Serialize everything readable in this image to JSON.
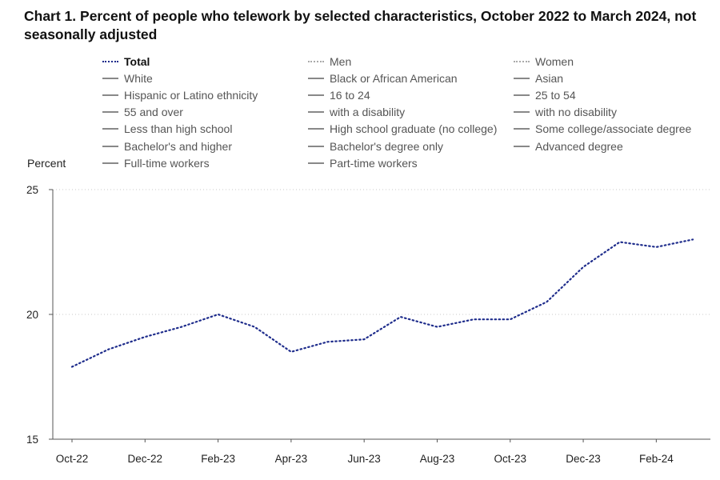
{
  "chart_data": {
    "type": "line",
    "title": "Chart 1. Percent of people who telework by selected characteristics, October 2022 to March 2024, not seasonally adjusted",
    "ylabel": "Percent",
    "xlabel": "",
    "ylim": [
      15,
      25
    ],
    "yticks": [
      "15",
      "20",
      "25"
    ],
    "x": [
      "Oct-22",
      "Nov-22",
      "Dec-22",
      "Jan-23",
      "Feb-23",
      "Mar-23",
      "Apr-23",
      "May-23",
      "Jun-23",
      "Jul-23",
      "Aug-23",
      "Sep-23",
      "Oct-23",
      "Nov-23",
      "Dec-23",
      "Jan-24",
      "Feb-24",
      "Mar-24"
    ],
    "xtick_labels": [
      "Oct-22",
      "Dec-22",
      "Feb-23",
      "Apr-23",
      "Jun-23",
      "Aug-23",
      "Oct-23",
      "Dec-23",
      "Feb-24"
    ],
    "grid": "horizontal dotted",
    "legend_placement": "top",
    "series": [
      {
        "name": "Total",
        "style": "dotted",
        "color": "#1f2d8c",
        "values": [
          17.9,
          18.6,
          19.1,
          19.5,
          20.0,
          19.5,
          18.5,
          18.9,
          19.0,
          19.9,
          19.5,
          19.8,
          19.8,
          20.5,
          21.9,
          22.9,
          22.7,
          23.0
        ]
      }
    ],
    "legend": [
      {
        "label": "Total",
        "style": "dotted",
        "active": true
      },
      {
        "label": "Men",
        "style": "dotted",
        "active": false
      },
      {
        "label": "Women",
        "style": "dotted",
        "active": false
      },
      {
        "label": "White",
        "style": "solid",
        "active": false
      },
      {
        "label": "Black or African American",
        "style": "solid",
        "active": false
      },
      {
        "label": "Asian",
        "style": "solid",
        "active": false
      },
      {
        "label": "Hispanic or Latino ethnicity",
        "style": "solid",
        "active": false
      },
      {
        "label": "16 to 24",
        "style": "solid",
        "active": false
      },
      {
        "label": "25 to 54",
        "style": "solid",
        "active": false
      },
      {
        "label": "55 and over",
        "style": "solid",
        "active": false
      },
      {
        "label": "with a disability",
        "style": "solid",
        "active": false
      },
      {
        "label": "with no disability",
        "style": "solid",
        "active": false
      },
      {
        "label": "Less than high school",
        "style": "solid",
        "active": false
      },
      {
        "label": "High school graduate (no college)",
        "style": "solid",
        "active": false
      },
      {
        "label": "Some college/associate degree",
        "style": "solid",
        "active": false
      },
      {
        "label": "Bachelor's and higher",
        "style": "solid",
        "active": false
      },
      {
        "label": "Bachelor's degree only",
        "style": "solid",
        "active": false
      },
      {
        "label": "Advanced degree",
        "style": "solid",
        "active": false
      },
      {
        "label": "Full-time workers",
        "style": "solid",
        "active": false
      },
      {
        "label": "Part-time workers",
        "style": "solid",
        "active": false
      }
    ]
  }
}
